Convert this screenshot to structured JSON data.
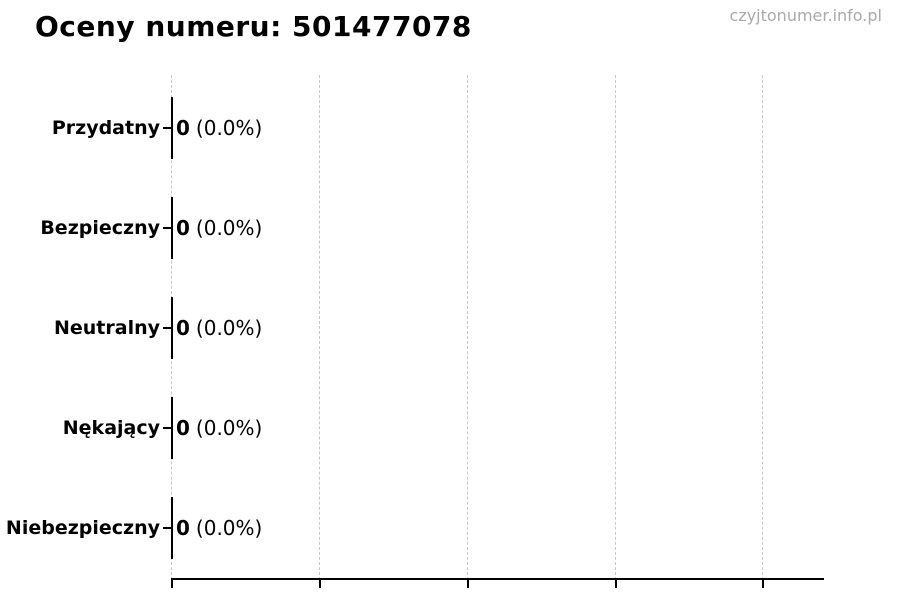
{
  "header": {
    "watermark": "czyjtonumer.info.pl"
  },
  "chart_data": {
    "type": "bar",
    "orientation": "horizontal",
    "title": "Oceny numeru: 501477078",
    "categories": [
      "Przydatny",
      "Bezpieczny",
      "Neutralny",
      "Nękający",
      "Niebezpieczny"
    ],
    "values": [
      0,
      0,
      0,
      0,
      0
    ],
    "count_labels": [
      "0",
      "0",
      "0",
      "0",
      "0"
    ],
    "percent_labels": [
      "(0.0%)",
      "(0.0%)",
      "(0.0%)",
      "(0.0%)",
      "(0.0%)"
    ],
    "xlabel": "",
    "ylabel": "",
    "x_tick_labels": [],
    "x_gridline_count": 5,
    "grid": "vertical-dashed",
    "legend": "none",
    "colors": {
      "text": "#000000",
      "bar_edge": "#000000",
      "gridline": "#c8c8c8",
      "watermark": "#aaaaaa",
      "background": "#ffffff"
    }
  }
}
